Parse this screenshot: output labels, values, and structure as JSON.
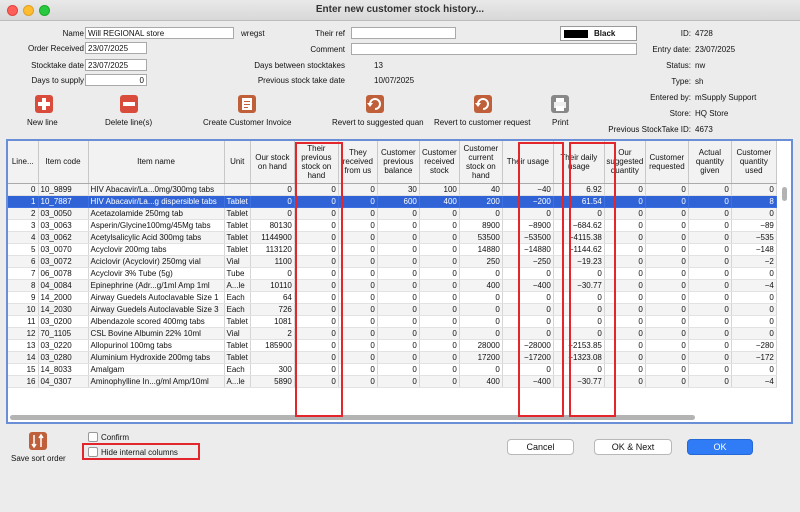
{
  "window": {
    "title": "Enter new customer stock history..."
  },
  "header": {
    "name_label": "Name",
    "name_value": "Will REGIONAL store",
    "code_value": "wregst",
    "their_ref_label": "Their ref",
    "their_ref_value": "",
    "comment_label": "Comment",
    "comment_value": "",
    "order_received_label": "Order Received",
    "order_received_value": "23/07/2025",
    "stocktake_date_label": "Stocktake date",
    "stocktake_date_value": "23/07/2025",
    "days_to_supply_label": "Days to supply",
    "days_to_supply_value": "0",
    "days_between_label": "Days between stocktakes",
    "days_between_value": "13",
    "prev_stocktake_label": "Previous stock take date",
    "prev_stocktake_value": "10/07/2025",
    "color_name": "Black",
    "color_hex": "#000000",
    "id_label": "ID:",
    "id_value": "4728",
    "entry_date_label": "Entry date:",
    "entry_date_value": "23/07/2025",
    "status_label": "Status:",
    "status_value": "nw",
    "type_label": "Type:",
    "type_value": "sh",
    "entered_by_label": "Entered by:",
    "entered_by_value": "mSupply Support",
    "store_label": "Store:",
    "store_value": "HQ Store",
    "prev_stocktake_id_label": "Previous StockTake ID:",
    "prev_stocktake_id_value": "4673"
  },
  "toolbar": {
    "new_line": "New line",
    "delete_lines": "Delete line(s)",
    "create_invoice": "Create Customer Invoice",
    "revert_suggested": "Revert to suggested quan",
    "revert_request": "Revert to customer request",
    "print": "Print"
  },
  "grid": {
    "columns": [
      "Line...",
      "Item code",
      "Item name",
      "Unit",
      "Our stock on hand",
      "Their previous stock on hand",
      "They received from us",
      "Customer previous balance",
      "Customer received stock",
      "Customer current stock on hand",
      "Their usage",
      "Their daily usage",
      "Our suggested quantity",
      "Customer requested",
      "Actual quantity given",
      "Customer quantity used"
    ],
    "rows": [
      [
        "0",
        "10_9899",
        "HIV Abacavir/La...0mg/300mg tabs",
        "",
        "0",
        "0",
        "0",
        "30",
        "100",
        "40",
        "−40",
        "6.92",
        "0",
        "0",
        "0",
        "0"
      ],
      [
        "1",
        "10_7887",
        "HIV Abacavir/La...g dispersible tabs",
        "Tablet",
        "0",
        "0",
        "0",
        "600",
        "400",
        "200",
        "−200",
        "61.54",
        "0",
        "0",
        "0",
        "8"
      ],
      [
        "2",
        "03_0050",
        "Acetazolamide 250mg tab",
        "Tablet",
        "0",
        "0",
        "0",
        "0",
        "0",
        "0",
        "0",
        "0",
        "0",
        "0",
        "0",
        "0"
      ],
      [
        "3",
        "03_0063",
        "Asperin/Glycine100mg/45Mg tabs",
        "Tablet",
        "80130",
        "0",
        "0",
        "0",
        "0",
        "8900",
        "−8900",
        "−684.62",
        "0",
        "0",
        "0",
        "−89"
      ],
      [
        "4",
        "03_0062",
        "Acetylsalicylic Acid 300mg tabs",
        "Tablet",
        "1144900",
        "0",
        "0",
        "0",
        "0",
        "53500",
        "−53500",
        "−4115.38",
        "0",
        "0",
        "0",
        "−535"
      ],
      [
        "5",
        "03_0070",
        "Acyclovir 200mg tabs",
        "Tablet",
        "113120",
        "0",
        "0",
        "0",
        "0",
        "14880",
        "−14880",
        "−1144.62",
        "0",
        "0",
        "0",
        "−148"
      ],
      [
        "6",
        "03_0072",
        "Aciclovir (Acyclovir) 250mg vial",
        "Vial",
        "1100",
        "0",
        "0",
        "0",
        "0",
        "250",
        "−250",
        "−19.23",
        "0",
        "0",
        "0",
        "−2"
      ],
      [
        "7",
        "06_0078",
        "Acyclovir 3% Tube (5g)",
        "Tube",
        "0",
        "0",
        "0",
        "0",
        "0",
        "0",
        "0",
        "0",
        "0",
        "0",
        "0",
        "0"
      ],
      [
        "8",
        "04_0084",
        "Epinephrine (Adr...g/1ml Amp 1ml",
        "A...le",
        "10110",
        "0",
        "0",
        "0",
        "0",
        "400",
        "−400",
        "−30.77",
        "0",
        "0",
        "0",
        "−4"
      ],
      [
        "9",
        "14_2000",
        "Airway Guedels Autoclavable Size 1",
        "Each",
        "64",
        "0",
        "0",
        "0",
        "0",
        "0",
        "0",
        "0",
        "0",
        "0",
        "0",
        "0"
      ],
      [
        "10",
        "14_2030",
        "Airway Guedels Autoclavable Size 3",
        "Each",
        "726",
        "0",
        "0",
        "0",
        "0",
        "0",
        "0",
        "0",
        "0",
        "0",
        "0",
        "0"
      ],
      [
        "11",
        "03_0200",
        "Albendazole scored 400mg tabs",
        "Tablet",
        "1081",
        "0",
        "0",
        "0",
        "0",
        "0",
        "0",
        "0",
        "0",
        "0",
        "0",
        "0"
      ],
      [
        "12",
        "70_1105",
        "CSL Bovine Albumin 22% 10ml",
        "Vial",
        "2",
        "0",
        "0",
        "0",
        "0",
        "0",
        "0",
        "0",
        "0",
        "0",
        "0",
        "0"
      ],
      [
        "13",
        "03_0220",
        "Allopurinol 100mg tabs",
        "Tablet",
        "185900",
        "0",
        "0",
        "0",
        "0",
        "28000",
        "−28000",
        "−2153.85",
        "0",
        "0",
        "0",
        "−280"
      ],
      [
        "14",
        "03_0280",
        "Aluminium Hydroxide 200mg tabs",
        "Tablet",
        "",
        "0",
        "0",
        "0",
        "0",
        "17200",
        "−17200",
        "−1323.08",
        "0",
        "0",
        "0",
        "−172"
      ],
      [
        "15",
        "14_8033",
        "Amalgam",
        "Each",
        "300",
        "0",
        "0",
        "0",
        "0",
        "0",
        "0",
        "0",
        "0",
        "0",
        "0",
        "0"
      ],
      [
        "16",
        "04_0307",
        "Aminophylline In...g/ml Amp/10ml",
        "A...le",
        "5890",
        "0",
        "0",
        "0",
        "0",
        "400",
        "−400",
        "−30.77",
        "0",
        "0",
        "0",
        "−4"
      ]
    ]
  },
  "footer": {
    "save_sort_order": "Save sort order",
    "confirm": "Confirm",
    "hide_internal_columns": "Hide internal columns",
    "cancel": "Cancel",
    "ok_next": "OK & Next",
    "ok": "OK"
  },
  "icons": {
    "new_line": "plus-icon",
    "delete_lines": "minus-icon",
    "create_invoice": "invoice-icon",
    "revert_suggested": "revert-icon",
    "revert_request": "revert-icon",
    "print": "printer-icon",
    "save_sort_order": "sort-icon"
  },
  "colors": {
    "accent": "#2f63d6",
    "highlight": "#e3262b",
    "ok_button": "#2f7cf6"
  }
}
